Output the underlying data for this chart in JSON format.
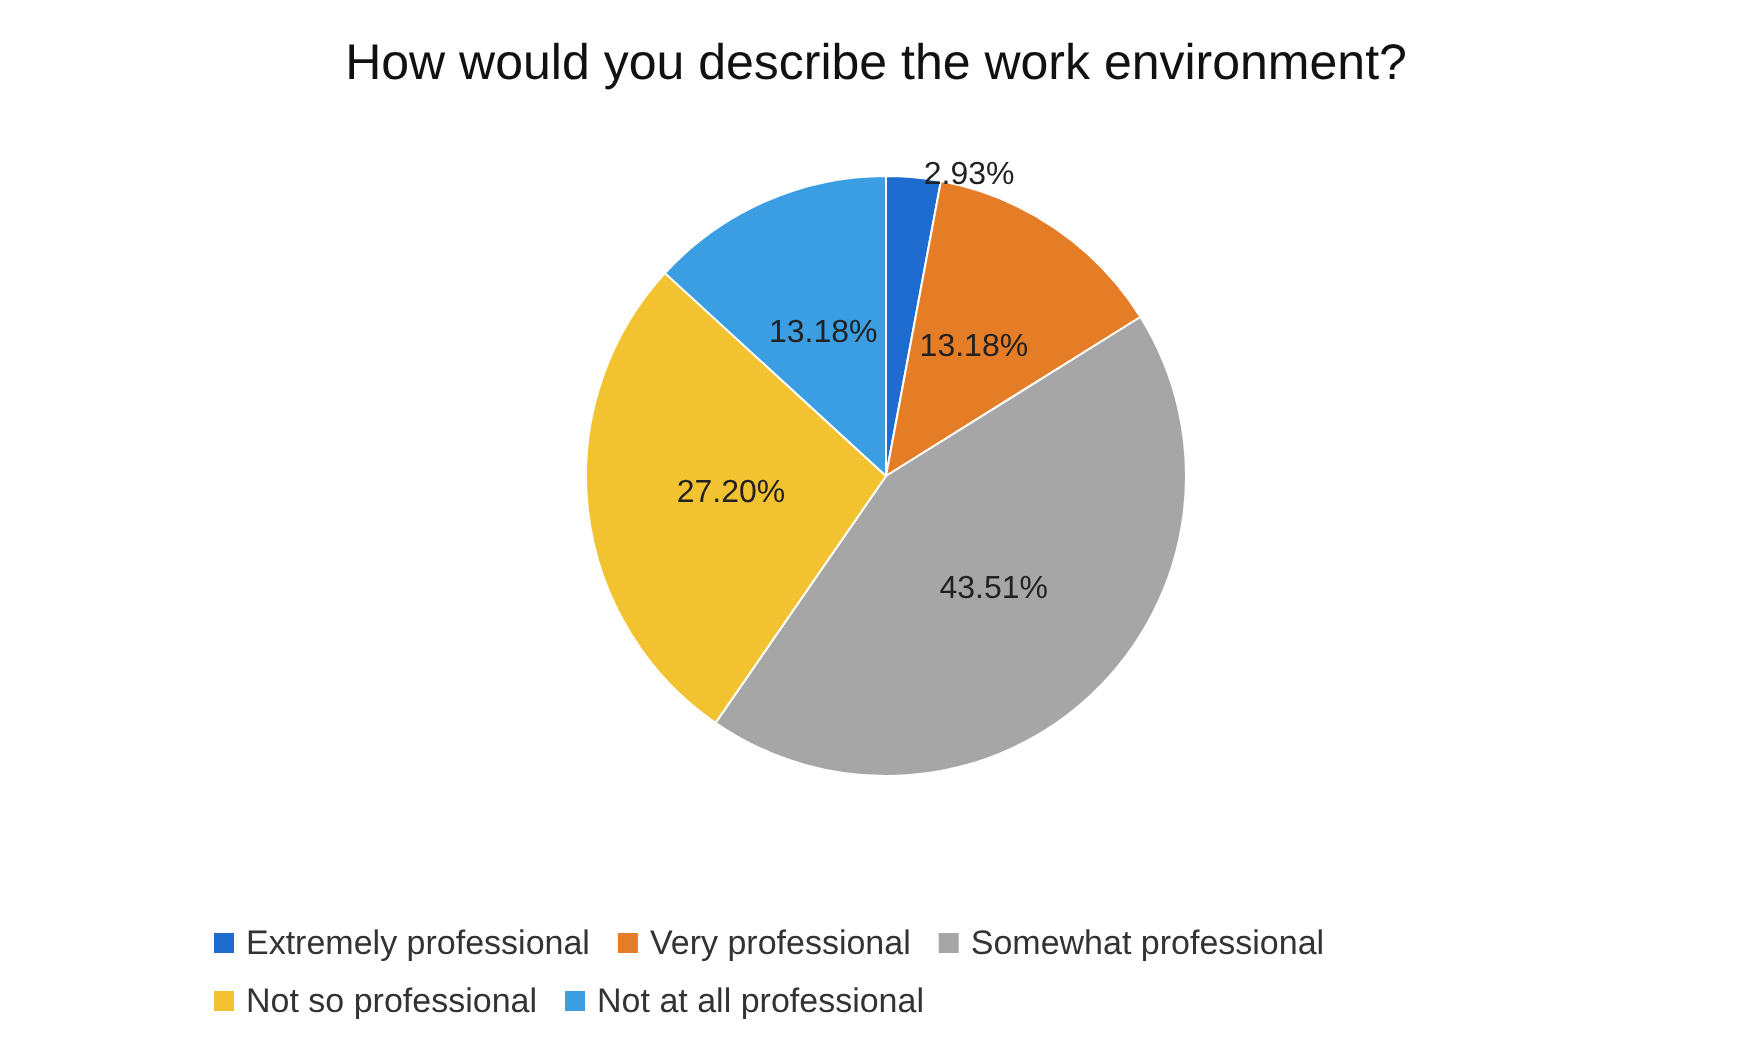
{
  "chart_data": {
    "type": "pie",
    "title": "How would you describe the work environment?",
    "categories": [
      "Extremely professional",
      "Very professional",
      "Somewhat professional",
      "Not so professional",
      "Not at all professional"
    ],
    "values": [
      2.93,
      13.18,
      43.51,
      27.2,
      13.18
    ],
    "value_labels": [
      "2.93%",
      "13.18%",
      "43.51%",
      "27.20%",
      "13.18%"
    ],
    "colors": [
      "#1f6cd0",
      "#e57d27",
      "#a6a6a6",
      "#f2c230",
      "#3b9ee3"
    ],
    "legend": "bottom"
  }
}
